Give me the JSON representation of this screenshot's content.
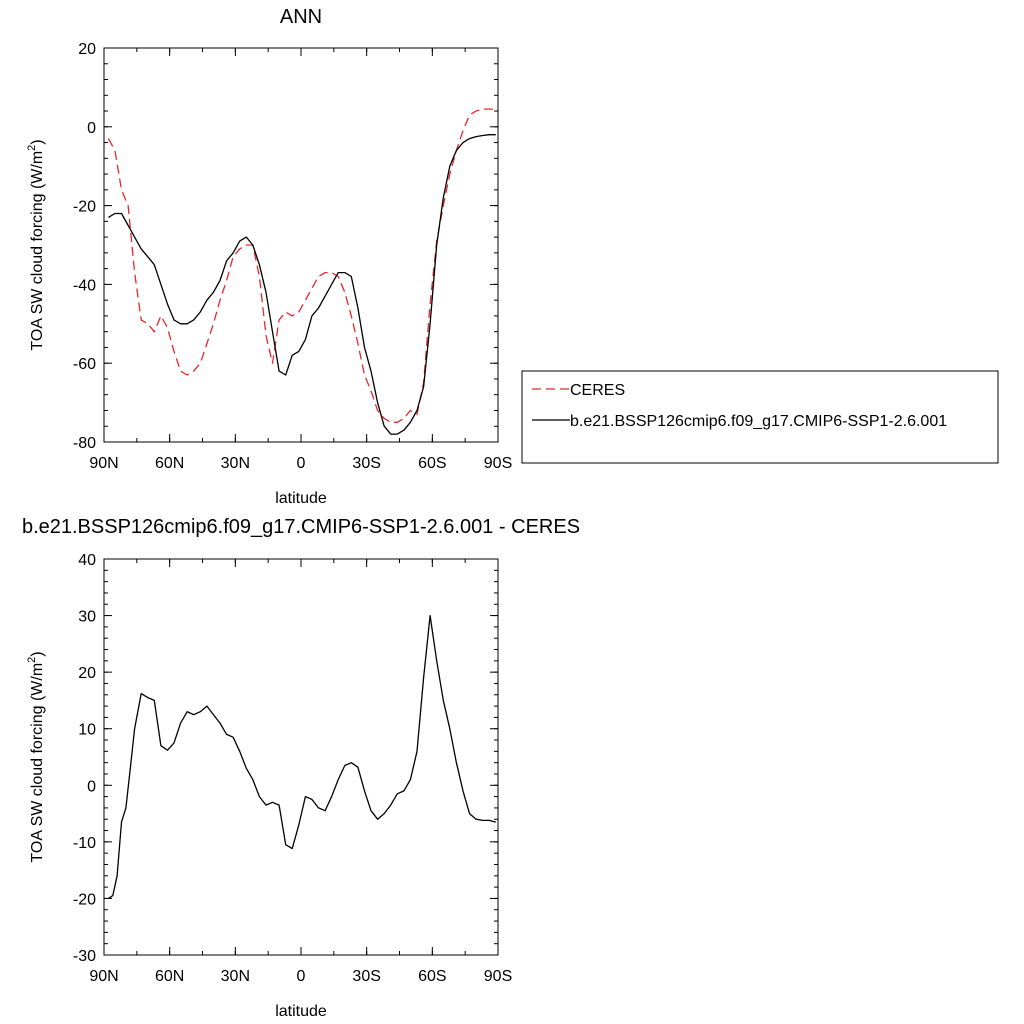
{
  "chart_data": [
    {
      "type": "line",
      "title": "ANN",
      "xlabel": "latitude",
      "ylabel": "TOA SW cloud forcing (W/m",
      "ylabel_sup": "2",
      "ylabel_close": ")",
      "xlim": [
        90,
        -90
      ],
      "ylim": [
        -80,
        20
      ],
      "x_ticks": [
        {
          "value": 90,
          "label": "90N"
        },
        {
          "value": 60,
          "label": "60N"
        },
        {
          "value": 30,
          "label": "30N"
        },
        {
          "value": 0,
          "label": "0"
        },
        {
          "value": -30,
          "label": "30S"
        },
        {
          "value": -60,
          "label": "60S"
        },
        {
          "value": -90,
          "label": "90S"
        }
      ],
      "y_ticks": [
        20,
        0,
        -20,
        -40,
        -60,
        -80
      ],
      "legend_position": "right",
      "series": [
        {
          "name": "CERES",
          "color": "#e8262b",
          "dash": "dashed",
          "x": [
            88,
            85,
            82,
            79,
            76,
            73,
            70,
            67,
            64,
            61,
            58,
            55,
            52,
            49,
            46,
            43,
            40,
            37,
            34,
            31,
            28,
            25,
            22,
            19,
            16,
            13,
            10,
            7,
            4,
            1,
            -2,
            -5,
            -8,
            -11,
            -14,
            -17,
            -20,
            -23,
            -26,
            -29,
            -32,
            -35,
            -38,
            -41,
            -44,
            -47,
            -50,
            -53,
            -56,
            -59,
            -62,
            -65,
            -68,
            -71,
            -74,
            -77,
            -80,
            -83,
            -86,
            -89
          ],
          "y": [
            -3,
            -6,
            -16,
            -20,
            -37,
            -49,
            -50,
            -52,
            -48,
            -51,
            -57,
            -62,
            -63,
            -62,
            -60,
            -55,
            -50,
            -44,
            -39,
            -33,
            -31,
            -30,
            -30,
            -38,
            -53,
            -60,
            -49,
            -47,
            -48,
            -47,
            -44,
            -41,
            -38,
            -37,
            -37,
            -38,
            -42,
            -48,
            -55,
            -63,
            -67,
            -72,
            -74,
            -75,
            -75,
            -74,
            -72,
            -73,
            -65,
            -45,
            -29,
            -20,
            -12,
            -6,
            -1,
            3,
            4,
            4.5,
            4.5,
            4.5
          ]
        },
        {
          "name": "b.e21.BSSP126cmip6.f09_g17.CMIP6-SSP1-2.6.001",
          "color": "#000000",
          "dash": "solid",
          "x": [
            88,
            85,
            82,
            79,
            76,
            73,
            70,
            67,
            64,
            61,
            58,
            55,
            52,
            49,
            46,
            43,
            40,
            37,
            34,
            31,
            28,
            25,
            22,
            19,
            16,
            13,
            10,
            7,
            4,
            1,
            -2,
            -5,
            -8,
            -11,
            -14,
            -17,
            -20,
            -23,
            -26,
            -29,
            -32,
            -35,
            -38,
            -41,
            -44,
            -47,
            -50,
            -53,
            -56,
            -59,
            -62,
            -65,
            -68,
            -71,
            -74,
            -77,
            -80,
            -83,
            -86,
            -89
          ],
          "y": [
            -23,
            -22,
            -22,
            -25,
            -28,
            -31,
            -33,
            -35,
            -40,
            -45,
            -49,
            -50,
            -50,
            -49,
            -47,
            -44,
            -42,
            -39,
            -34,
            -32,
            -29,
            -28,
            -30,
            -35,
            -42,
            -52,
            -62,
            -63,
            -58,
            -57,
            -54,
            -48,
            -46,
            -43,
            -40,
            -37,
            -37,
            -38,
            -46,
            -56,
            -62,
            -70,
            -76,
            -78,
            -78,
            -77,
            -75,
            -72,
            -66,
            -50,
            -30,
            -18,
            -10,
            -6,
            -4,
            -3,
            -2.5,
            -2.2,
            -2,
            -2
          ]
        }
      ]
    },
    {
      "type": "line",
      "title": "b.e21.BSSP126cmip6.f09_g17.CMIP6-SSP1-2.6.001 - CERES",
      "xlabel": "latitude",
      "ylabel": "TOA SW cloud forcing (W/m",
      "ylabel_sup": "2",
      "ylabel_close": ")",
      "xlim": [
        90,
        -90
      ],
      "ylim": [
        -30,
        40
      ],
      "x_ticks": [
        {
          "value": 90,
          "label": "90N"
        },
        {
          "value": 60,
          "label": "60N"
        },
        {
          "value": 30,
          "label": "30N"
        },
        {
          "value": 0,
          "label": "0"
        },
        {
          "value": -30,
          "label": "30S"
        },
        {
          "value": -60,
          "label": "60S"
        },
        {
          "value": -90,
          "label": "90S"
        }
      ],
      "y_ticks": [
        40,
        30,
        20,
        10,
        0,
        -10,
        -20,
        -30
      ],
      "series": [
        {
          "color": "#000000",
          "dash": "solid",
          "x": [
            88,
            86,
            84,
            82,
            80,
            78,
            76,
            73,
            70,
            67,
            64,
            61,
            58,
            55,
            52,
            49,
            46,
            43,
            40,
            37,
            34,
            31,
            28,
            25,
            22,
            19,
            16,
            13,
            10,
            7,
            4,
            1,
            -2,
            -5,
            -8,
            -11,
            -14,
            -17,
            -20,
            -23,
            -26,
            -29,
            -32,
            -35,
            -38,
            -41,
            -44,
            -47,
            -50,
            -53,
            -56,
            -59,
            -62,
            -65,
            -68,
            -71,
            -74,
            -77,
            -80,
            -83,
            -86,
            -89
          ],
          "y": [
            -20,
            -19.5,
            -16,
            -6.5,
            -4,
            3,
            10,
            16.2,
            15.5,
            15,
            7,
            6.2,
            7.5,
            11,
            13,
            12.5,
            13,
            14,
            12.5,
            11,
            9,
            8.5,
            6,
            3,
            1,
            -2,
            -3.5,
            -3,
            -3.5,
            -10.5,
            -11.2,
            -7,
            -2,
            -2.5,
            -4,
            -4.5,
            -2,
            1,
            3.5,
            4,
            3.2,
            -1,
            -4.5,
            -6,
            -5,
            -3.5,
            -1.5,
            -1,
            1,
            6,
            19,
            30,
            22,
            15,
            10,
            4,
            -1,
            -5,
            -6,
            -6.2,
            -6.2,
            -6.5
          ]
        }
      ]
    }
  ]
}
